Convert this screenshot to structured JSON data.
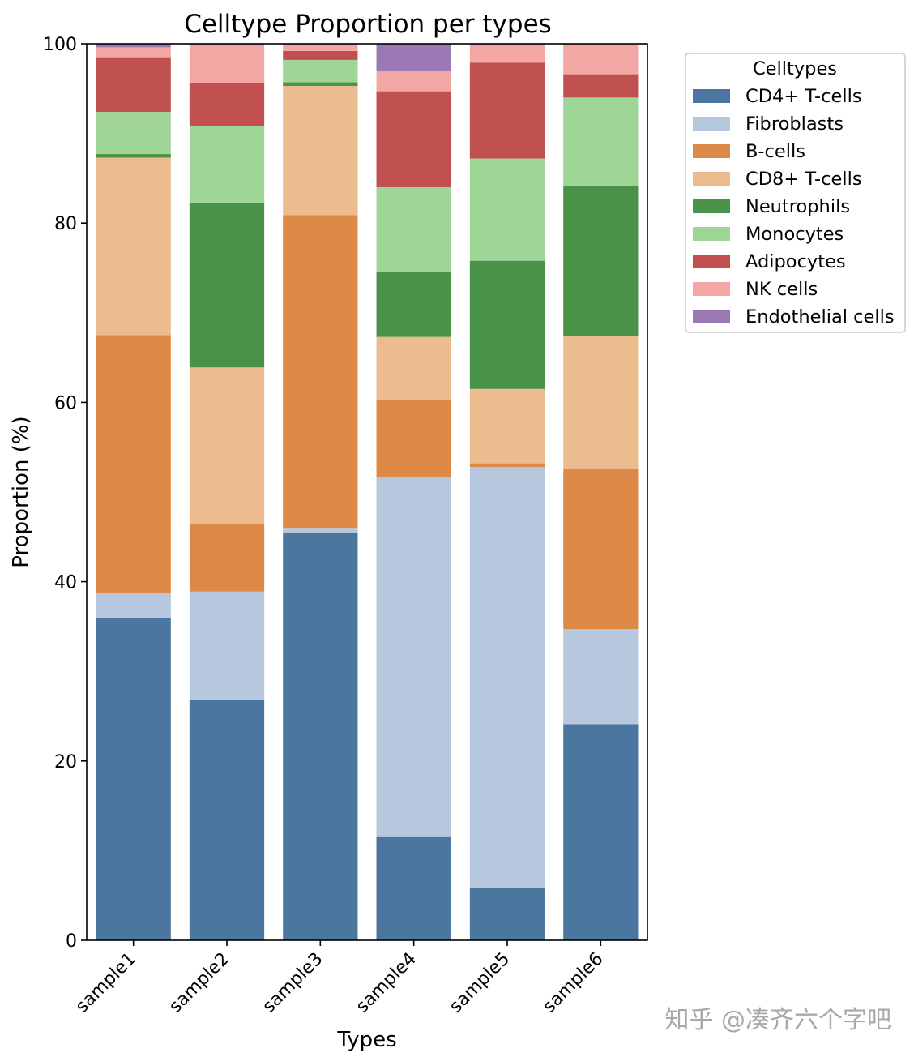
{
  "chart_data": {
    "type": "bar",
    "stacked": true,
    "title": "Celltype Proportion per types",
    "xlabel": "Types",
    "ylabel": "Proportion (%)",
    "ylim": [
      0,
      100
    ],
    "yticks": [
      0,
      20,
      40,
      60,
      80,
      100
    ],
    "grid": false,
    "categories": [
      "sample1",
      "sample2",
      "sample3",
      "sample4",
      "sample5",
      "sample6"
    ],
    "legend": {
      "title": "Celltypes",
      "position": "outside top-right"
    },
    "series": [
      {
        "name": "CD4+ T-cells",
        "color": "#4a76a0",
        "values": [
          35.9,
          26.8,
          45.4,
          11.6,
          5.8,
          24.1
        ]
      },
      {
        "name": "Fibroblasts",
        "color": "#b7c7de",
        "values": [
          2.8,
          12.1,
          0.6,
          40.1,
          47.0,
          10.6
        ]
      },
      {
        "name": "B-cells",
        "color": "#dd8a49",
        "values": [
          28.8,
          7.5,
          34.9,
          8.6,
          0.4,
          17.9
        ]
      },
      {
        "name": "CD8+ T-cells",
        "color": "#ecbc8f",
        "values": [
          19.8,
          17.5,
          14.4,
          7.0,
          8.3,
          14.8
        ]
      },
      {
        "name": "Neutrophils",
        "color": "#4a9248",
        "values": [
          0.4,
          18.3,
          0.4,
          7.3,
          14.3,
          16.7
        ]
      },
      {
        "name": "Monocytes",
        "color": "#9fd596",
        "values": [
          4.7,
          8.6,
          2.5,
          9.4,
          11.4,
          9.9
        ]
      },
      {
        "name": "Adipocytes",
        "color": "#c04f4f",
        "values": [
          6.1,
          4.8,
          1.0,
          10.7,
          10.7,
          2.6
        ]
      },
      {
        "name": "NK cells",
        "color": "#f2a7a4",
        "values": [
          1.1,
          4.2,
          0.6,
          2.3,
          2.0,
          3.4
        ]
      },
      {
        "name": "Endothelial cells",
        "color": "#9a79b5",
        "values": [
          0.4,
          0.2,
          0.2,
          3.0,
          0.1,
          0.0
        ]
      }
    ]
  },
  "watermark": "知乎 @凑齐六个字吧"
}
